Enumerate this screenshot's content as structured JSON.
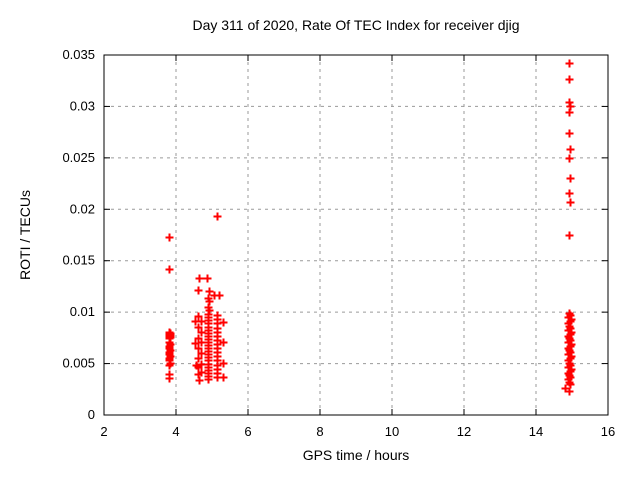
{
  "chart": {
    "title": "Day 311 of 2020, Rate Of TEC Index for receiver djig",
    "xlabel": "GPS time / hours",
    "ylabel": "ROTI / TECUs"
  },
  "colors": {
    "marker": "#ff0000",
    "axis": "#000000",
    "grid": "#9a9a9a",
    "background": "#ffffff"
  },
  "chart_data": {
    "type": "scatter",
    "title": "Day 311 of 2020, Rate Of TEC Index for receiver djig",
    "xlabel": "GPS time / hours",
    "ylabel": "ROTI / TECUs",
    "xlim": [
      2,
      16
    ],
    "ylim": [
      0,
      0.035
    ],
    "xticks": [
      2,
      4,
      6,
      8,
      10,
      12,
      14,
      16
    ],
    "yticks": [
      0,
      0.005,
      0.01,
      0.015,
      0.02,
      0.025,
      0.03,
      0.035
    ],
    "grid": true,
    "legend_position": "none",
    "marker": "plus",
    "series": [
      {
        "name": "ROTI",
        "points": [
          [
            3.81,
            0.0173
          ],
          [
            3.81,
            0.0142
          ],
          [
            3.81,
            0.0081
          ],
          [
            3.84,
            0.008
          ],
          [
            3.81,
            0.0079
          ],
          [
            3.84,
            0.0078
          ],
          [
            3.81,
            0.0077
          ],
          [
            3.84,
            0.0076
          ],
          [
            3.81,
            0.0075
          ],
          [
            3.81,
            0.0071
          ],
          [
            3.84,
            0.0069
          ],
          [
            3.81,
            0.0067
          ],
          [
            3.81,
            0.0065
          ],
          [
            3.84,
            0.0063
          ],
          [
            3.81,
            0.0061
          ],
          [
            3.81,
            0.0059
          ],
          [
            3.84,
            0.0057
          ],
          [
            3.81,
            0.0055
          ],
          [
            3.81,
            0.0053
          ],
          [
            3.84,
            0.0051
          ],
          [
            3.81,
            0.0049
          ],
          [
            3.81,
            0.004
          ],
          [
            3.81,
            0.0036
          ],
          [
            5.14,
            0.0193
          ],
          [
            4.64,
            0.0133
          ],
          [
            4.86,
            0.0133
          ],
          [
            4.61,
            0.0122
          ],
          [
            4.92,
            0.0121
          ],
          [
            5.06,
            0.0117
          ],
          [
            5.19,
            0.0117
          ],
          [
            4.89,
            0.0114
          ],
          [
            4.92,
            0.0111
          ],
          [
            4.89,
            0.0105
          ],
          [
            4.92,
            0.0102
          ],
          [
            4.53,
            0.0091
          ],
          [
            4.53,
            0.007
          ],
          [
            4.56,
            0.0049
          ],
          [
            4.64,
            0.0034
          ],
          [
            4.61,
            0.0096
          ],
          [
            4.61,
            0.0086
          ],
          [
            4.61,
            0.0075
          ],
          [
            4.61,
            0.0065
          ],
          [
            4.61,
            0.0055
          ],
          [
            4.61,
            0.0047
          ],
          [
            4.61,
            0.004
          ],
          [
            4.69,
            0.0091
          ],
          [
            4.69,
            0.0081
          ],
          [
            4.69,
            0.0071
          ],
          [
            4.69,
            0.006
          ],
          [
            4.69,
            0.005
          ],
          [
            4.69,
            0.0042
          ],
          [
            4.89,
            0.0098
          ],
          [
            4.89,
            0.0095
          ],
          [
            4.89,
            0.0092
          ],
          [
            4.89,
            0.0089
          ],
          [
            4.89,
            0.0086
          ],
          [
            4.89,
            0.0083
          ],
          [
            4.89,
            0.008
          ],
          [
            4.89,
            0.0077
          ],
          [
            4.89,
            0.0074
          ],
          [
            4.89,
            0.0071
          ],
          [
            4.89,
            0.0068
          ],
          [
            4.89,
            0.0065
          ],
          [
            4.89,
            0.0062
          ],
          [
            4.89,
            0.0059
          ],
          [
            4.89,
            0.0056
          ],
          [
            4.89,
            0.0053
          ],
          [
            4.89,
            0.005
          ],
          [
            4.89,
            0.0047
          ],
          [
            4.89,
            0.0044
          ],
          [
            4.89,
            0.0041
          ],
          [
            4.89,
            0.0038
          ],
          [
            4.89,
            0.0035
          ],
          [
            5.14,
            0.0097
          ],
          [
            5.14,
            0.0093
          ],
          [
            5.14,
            0.0089
          ],
          [
            5.14,
            0.0085
          ],
          [
            5.14,
            0.0081
          ],
          [
            5.14,
            0.0077
          ],
          [
            5.14,
            0.0073
          ],
          [
            5.14,
            0.0069
          ],
          [
            5.14,
            0.0065
          ],
          [
            5.14,
            0.0061
          ],
          [
            5.14,
            0.0057
          ],
          [
            5.14,
            0.0053
          ],
          [
            5.14,
            0.0049
          ],
          [
            5.14,
            0.0045
          ],
          [
            5.14,
            0.0041
          ],
          [
            5.14,
            0.0037
          ],
          [
            5.31,
            0.009
          ],
          [
            5.31,
            0.0071
          ],
          [
            5.31,
            0.0051
          ],
          [
            5.31,
            0.0037
          ],
          [
            14.92,
            0.0342
          ],
          [
            14.92,
            0.0327
          ],
          [
            14.92,
            0.0304
          ],
          [
            14.94,
            0.03
          ],
          [
            14.92,
            0.0295
          ],
          [
            14.92,
            0.0274
          ],
          [
            14.94,
            0.0259
          ],
          [
            14.92,
            0.025
          ],
          [
            14.94,
            0.023
          ],
          [
            14.92,
            0.0216
          ],
          [
            14.94,
            0.0207
          ],
          [
            14.92,
            0.0175
          ],
          [
            14.92,
            0.0099
          ],
          [
            14.95,
            0.0097
          ],
          [
            14.89,
            0.0095
          ],
          [
            14.97,
            0.0093
          ],
          [
            14.94,
            0.0091
          ],
          [
            14.9,
            0.0089
          ],
          [
            14.92,
            0.0087
          ],
          [
            14.95,
            0.0085
          ],
          [
            14.89,
            0.0083
          ],
          [
            14.97,
            0.0081
          ],
          [
            14.94,
            0.0079
          ],
          [
            14.9,
            0.0077
          ],
          [
            14.92,
            0.0075
          ],
          [
            14.95,
            0.0073
          ],
          [
            14.89,
            0.0071
          ],
          [
            14.97,
            0.0069
          ],
          [
            14.94,
            0.0067
          ],
          [
            14.9,
            0.0065
          ],
          [
            14.92,
            0.0063
          ],
          [
            14.95,
            0.0061
          ],
          [
            14.89,
            0.0059
          ],
          [
            14.97,
            0.0057
          ],
          [
            14.94,
            0.0055
          ],
          [
            14.9,
            0.0053
          ],
          [
            14.92,
            0.0051
          ],
          [
            14.95,
            0.0049
          ],
          [
            14.89,
            0.0047
          ],
          [
            14.97,
            0.0045
          ],
          [
            14.94,
            0.0043
          ],
          [
            14.9,
            0.0041
          ],
          [
            14.92,
            0.0039
          ],
          [
            14.95,
            0.0037
          ],
          [
            14.89,
            0.0035
          ],
          [
            14.92,
            0.0032
          ],
          [
            14.94,
            0.003
          ],
          [
            14.81,
            0.0026
          ],
          [
            14.92,
            0.0023
          ]
        ]
      }
    ]
  }
}
